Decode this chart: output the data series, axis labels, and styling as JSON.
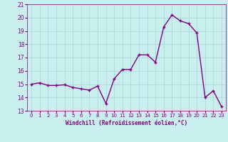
{
  "x": [
    0,
    1,
    2,
    3,
    4,
    5,
    6,
    7,
    8,
    9,
    10,
    11,
    12,
    13,
    14,
    15,
    16,
    17,
    18,
    19,
    20,
    21,
    22,
    23
  ],
  "y": [
    15.0,
    15.1,
    14.9,
    14.9,
    14.95,
    14.75,
    14.65,
    14.55,
    14.85,
    13.55,
    15.4,
    16.1,
    16.1,
    17.2,
    17.2,
    16.65,
    19.3,
    20.2,
    19.75,
    19.55,
    18.85,
    14.0,
    14.5,
    13.3
  ],
  "line_color": "#800080",
  "marker_color": "#800080",
  "bg_color": "#c8eeee",
  "grid_color": "#b0d8d8",
  "xlabel": "Windchill (Refroidissement éolien,°C)",
  "ylabel": "",
  "ylim": [
    13,
    21
  ],
  "xlim": [
    -0.5,
    23.5
  ],
  "yticks": [
    13,
    14,
    15,
    16,
    17,
    18,
    19,
    20,
    21
  ],
  "xticks": [
    0,
    1,
    2,
    3,
    4,
    5,
    6,
    7,
    8,
    9,
    10,
    11,
    12,
    13,
    14,
    15,
    16,
    17,
    18,
    19,
    20,
    21,
    22,
    23
  ],
  "xlabel_color": "#800080",
  "tick_color": "#800080",
  "marker_size": 2.5,
  "line_width": 1.0
}
